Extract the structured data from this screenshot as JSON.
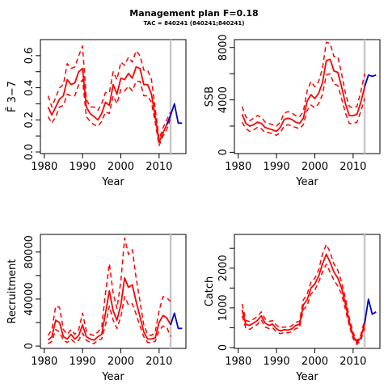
{
  "figure": {
    "title": "Management plan F=0.18",
    "subtitle": "TAC = 840241 (840241;840241)"
  },
  "colors": {
    "historic": "#ff0000",
    "forecast": "#0000cc",
    "divider": "#c8c8c8"
  },
  "chart_data": [
    {
      "type": "line",
      "id": "fbar",
      "xlabel": "Year",
      "ylabel": "F̄ 3−7",
      "xlim": [
        1979,
        2017
      ],
      "ylim": [
        -0.01,
        0.7
      ],
      "xticks": [
        1980,
        1990,
        2000,
        2010
      ],
      "yticks": [
        0.0,
        0.2,
        0.4,
        0.6
      ],
      "ytick_labels": [
        "0.0",
        "0.2",
        "0.4",
        "0.6"
      ],
      "divider_x": 2013,
      "x": [
        1981,
        1982,
        1983,
        1984,
        1985,
        1986,
        1987,
        1988,
        1989,
        1990,
        1991,
        1992,
        1993,
        1994,
        1995,
        1996,
        1997,
        1998,
        1999,
        2000,
        2001,
        2002,
        2003,
        2004,
        2005,
        2006,
        2007,
        2008,
        2009,
        2010,
        2011,
        2012,
        2013
      ],
      "series": [
        {
          "role": "estimate",
          "values": [
            0.28,
            0.23,
            0.28,
            0.33,
            0.35,
            0.45,
            0.42,
            0.43,
            0.5,
            0.52,
            0.28,
            0.24,
            0.22,
            0.2,
            0.24,
            0.31,
            0.29,
            0.42,
            0.36,
            0.46,
            0.45,
            0.49,
            0.46,
            0.53,
            0.52,
            0.42,
            0.42,
            0.36,
            0.22,
            0.06,
            0.12,
            0.17,
            0.23
          ]
        },
        {
          "role": "upper",
          "values": [
            0.35,
            0.28,
            0.34,
            0.4,
            0.42,
            0.55,
            0.52,
            0.53,
            0.6,
            0.66,
            0.33,
            0.28,
            0.28,
            0.26,
            0.3,
            0.37,
            0.37,
            0.5,
            0.45,
            0.56,
            0.54,
            0.59,
            0.56,
            0.63,
            0.6,
            0.51,
            0.51,
            0.45,
            0.27,
            0.08,
            0.15,
            0.2,
            0.25
          ]
        },
        {
          "role": "lower",
          "values": [
            0.22,
            0.18,
            0.22,
            0.28,
            0.29,
            0.36,
            0.35,
            0.35,
            0.42,
            0.45,
            0.22,
            0.19,
            0.17,
            0.16,
            0.19,
            0.25,
            0.24,
            0.35,
            0.3,
            0.39,
            0.38,
            0.41,
            0.38,
            0.44,
            0.44,
            0.35,
            0.35,
            0.31,
            0.18,
            0.04,
            0.1,
            0.14,
            0.21
          ]
        }
      ],
      "forecast": {
        "x": [
          2012,
          2013,
          2014,
          2015,
          2016
        ],
        "values": [
          0.17,
          0.23,
          0.3,
          0.18,
          0.18
        ]
      }
    },
    {
      "type": "line",
      "id": "ssb",
      "xlabel": "Year",
      "ylabel": "SSB",
      "xlim": [
        1979,
        2017
      ],
      "ylim": [
        -100,
        8600
      ],
      "xticks": [
        1980,
        1990,
        2000,
        2010
      ],
      "yticks": [
        0,
        4000,
        8000
      ],
      "ytick_labels": [
        "0",
        "4000",
        "8000"
      ],
      "divider_x": 2013,
      "x": [
        1981,
        1982,
        1983,
        1984,
        1985,
        1986,
        1987,
        1988,
        1989,
        1990,
        1991,
        1992,
        1993,
        1994,
        1995,
        1996,
        1997,
        1998,
        1999,
        2000,
        2001,
        2002,
        2003,
        2004,
        2005,
        2006,
        2007,
        2008,
        2009,
        2010,
        2011,
        2012,
        2013
      ],
      "series": [
        {
          "role": "estimate",
          "values": [
            2900,
            2200,
            2000,
            2100,
            2300,
            2200,
            1900,
            1800,
            1700,
            1600,
            1900,
            2500,
            2600,
            2500,
            2300,
            2200,
            2600,
            3900,
            4400,
            4100,
            4500,
            5300,
            7000,
            7100,
            6200,
            6100,
            5000,
            3700,
            2800,
            2800,
            2900,
            3800,
            5000
          ]
        },
        {
          "role": "upper",
          "values": [
            3500,
            2700,
            2400,
            2600,
            2800,
            2700,
            2300,
            2200,
            2100,
            2000,
            2300,
            3000,
            3100,
            3000,
            2800,
            2700,
            3100,
            4700,
            5400,
            5000,
            5400,
            6400,
            8400,
            8300,
            7300,
            7300,
            6000,
            4500,
            3500,
            3400,
            3500,
            4600,
            6000
          ]
        },
        {
          "role": "lower",
          "values": [
            2300,
            1800,
            1600,
            1700,
            1900,
            1800,
            1500,
            1500,
            1400,
            1300,
            1500,
            2000,
            2100,
            2000,
            1900,
            1800,
            2100,
            3200,
            3600,
            3400,
            3700,
            4400,
            5900,
            6000,
            5200,
            5100,
            4100,
            3000,
            2200,
            2200,
            2300,
            3100,
            4100
          ]
        }
      ],
      "forecast": {
        "x": [
          2013,
          2014,
          2015,
          2016
        ],
        "values": [
          5000,
          5900,
          5800,
          5900
        ]
      }
    },
    {
      "type": "line",
      "id": "recruitment",
      "xlabel": "Year",
      "ylabel": "Recruitment",
      "xlim": [
        1979,
        2017
      ],
      "ylim": [
        -2000,
        95000
      ],
      "xticks": [
        1980,
        1990,
        2000,
        2010
      ],
      "yticks": [
        0,
        40000,
        80000
      ],
      "ytick_labels": [
        "0",
        "40000",
        "80000"
      ],
      "divider_x": 2013,
      "x": [
        1981,
        1982,
        1983,
        1984,
        1985,
        1986,
        1987,
        1988,
        1989,
        1990,
        1991,
        1992,
        1993,
        1994,
        1995,
        1996,
        1997,
        1998,
        1999,
        2000,
        2001,
        2002,
        2003,
        2004,
        2005,
        2006,
        2007,
        2008,
        2009,
        2010,
        2011,
        2012,
        2013
      ],
      "series": [
        {
          "role": "estimate",
          "values": [
            5000,
            8000,
            22000,
            20000,
            8000,
            6000,
            10000,
            6000,
            9000,
            18000,
            8000,
            6000,
            5000,
            8000,
            10000,
            28000,
            47000,
            30000,
            22000,
            35000,
            58000,
            50000,
            52000,
            38000,
            25000,
            12000,
            6000,
            6000,
            7000,
            20000,
            26000,
            24000,
            18000
          ]
        },
        {
          "role": "upper",
          "values": [
            9000,
            14000,
            34000,
            33000,
            14000,
            10000,
            14000,
            10000,
            14000,
            28000,
            13000,
            10000,
            9000,
            12000,
            16000,
            45000,
            70000,
            45000,
            32000,
            55000,
            92000,
            78000,
            82000,
            58000,
            38000,
            18000,
            10000,
            9000,
            12000,
            30000,
            42000,
            41000,
            38000
          ]
        },
        {
          "role": "lower",
          "values": [
            2000,
            4000,
            14000,
            12000,
            5000,
            3000,
            6000,
            3000,
            5000,
            11000,
            5000,
            3000,
            2000,
            5000,
            6000,
            18000,
            34000,
            22000,
            15000,
            25000,
            42000,
            35000,
            36000,
            27000,
            17000,
            8000,
            3000,
            3000,
            4000,
            13000,
            17000,
            16000,
            8000
          ]
        }
      ],
      "forecast": {
        "x": [
          2013,
          2014,
          2015,
          2016
        ],
        "values": [
          18000,
          28000,
          15000,
          15000
        ]
      }
    },
    {
      "type": "line",
      "id": "catch",
      "xlabel": "Year",
      "ylabel": "Catch",
      "xlim": [
        1979,
        2017
      ],
      "ylim": [
        -20,
        2850
      ],
      "xticks": [
        1980,
        1990,
        2000,
        2010
      ],
      "yticks": [
        0,
        1000,
        2000
      ],
      "ytick_labels": [
        "0",
        "1000",
        "2000"
      ],
      "divider_x": 2013,
      "x": [
        1981,
        1982,
        1983,
        1984,
        1985,
        1986,
        1987,
        1988,
        1989,
        1990,
        1991,
        1992,
        1993,
        1994,
        1995,
        1996,
        1997,
        1998,
        1999,
        2000,
        2001,
        2002,
        2003,
        2004,
        2005,
        2006,
        2007,
        2008,
        2009,
        2010,
        2011,
        2012,
        2013
      ],
      "series": [
        {
          "role": "estimate",
          "values": [
            950,
            580,
            560,
            620,
            680,
            800,
            620,
            560,
            590,
            470,
            420,
            450,
            440,
            470,
            560,
            580,
            1080,
            1200,
            1500,
            1600,
            1800,
            2100,
            2350,
            2150,
            1900,
            1750,
            1500,
            1100,
            650,
            300,
            120,
            250,
            600
          ]
        },
        {
          "role": "upper",
          "values": [
            1100,
            680,
            660,
            720,
            780,
            900,
            720,
            660,
            680,
            560,
            500,
            520,
            510,
            550,
            640,
            660,
            1200,
            1350,
            1650,
            1750,
            1950,
            2350,
            2600,
            2400,
            2100,
            1950,
            1650,
            1250,
            750,
            380,
            170,
            320,
            700
          ]
        },
        {
          "role": "lower",
          "values": [
            800,
            480,
            460,
            520,
            580,
            700,
            520,
            480,
            500,
            390,
            350,
            380,
            370,
            400,
            480,
            500,
            960,
            1060,
            1350,
            1450,
            1650,
            1900,
            2100,
            1900,
            1700,
            1550,
            1350,
            950,
            550,
            230,
            80,
            180,
            500
          ]
        }
      ],
      "forecast": {
        "x": [
          2013,
          2014,
          2015,
          2016
        ],
        "values": [
          600,
          1220,
          840,
          900
        ]
      }
    }
  ]
}
